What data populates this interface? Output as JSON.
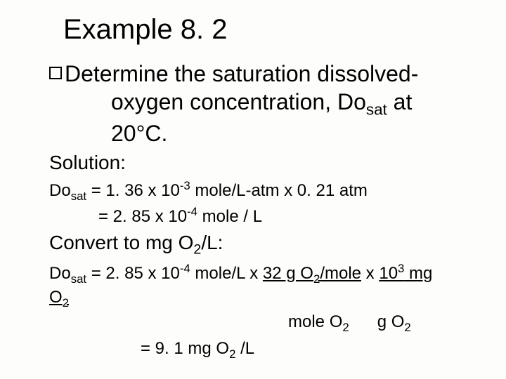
{
  "title": "Example 8. 2",
  "bullet": {
    "line1_word1": "Determine",
    "line1_rest": " the saturation dissolved-",
    "line2": "oxygen concentration, Do",
    "line2_sub": "sat",
    "line2_end": " at 20°C."
  },
  "solution_label": "Solution:",
  "eq1": {
    "lhs": "Do",
    "lhs_sub": "sat",
    "part1": " = 1. 36 x 10",
    "exp1": "-3",
    "part2": " mole/L-atm x 0. 21 atm",
    "line2a": "= 2. 85 x 10",
    "exp2": "-4",
    "line2b": " mole / L"
  },
  "convert": {
    "prefix": "Convert to mg O",
    "sub": "2",
    "suffix": "/L:"
  },
  "eq2": {
    "lhs": "Do",
    "lhs_sub": "sat",
    "p1": " = 2. 85 x 10",
    "e1": "-4",
    "p2": " mole/L x ",
    "u1a": "32 g O",
    "u1sub": "2",
    "u1b": "/mole",
    "p3": " x ",
    "u2a": "10",
    "u2exp": "3",
    "u2b": " mg",
    "o2": "O",
    "o2sub": "2"
  },
  "denom": {
    "d1a": "mole O",
    "d1sub": "2",
    "d2a": "g O",
    "d2sub": "2"
  },
  "result": {
    "p1": "= 9. 1 mg O",
    "sub": "2",
    "p2": " /L"
  }
}
